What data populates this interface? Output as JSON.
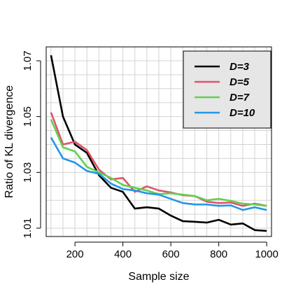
{
  "chart_data": {
    "type": "line",
    "title": "",
    "xlabel": "Sample size",
    "ylabel": "Ratio of KL divergence",
    "xlim": [
      80,
      1020
    ],
    "ylim": [
      1.007,
      1.075
    ],
    "x_ticks": [
      200,
      400,
      600,
      800,
      1000
    ],
    "y_ticks": [
      1.01,
      1.03,
      1.05,
      1.07
    ],
    "y_tick_labels": [
      "1.01",
      "1.03",
      "1.05",
      "1.07"
    ],
    "x_grid_step": 50,
    "y_grid_step": 0.005,
    "grid": true,
    "legend_position": "top-right",
    "x": [
      100,
      150,
      200,
      250,
      300,
      350,
      400,
      450,
      500,
      550,
      600,
      650,
      700,
      750,
      800,
      850,
      900,
      950,
      1000
    ],
    "series": [
      {
        "name": "D=3",
        "color": "#000000",
        "values": [
          1.072,
          1.05,
          1.04,
          1.037,
          1.029,
          1.0245,
          1.023,
          1.017,
          1.0175,
          1.017,
          1.0145,
          1.0125,
          1.0123,
          1.012,
          1.013,
          1.0113,
          1.0117,
          1.0093,
          1.009
        ]
      },
      {
        "name": "D=5",
        "color": "#DF536B",
        "values": [
          1.0515,
          1.04,
          1.041,
          1.038,
          1.031,
          1.0275,
          1.028,
          1.023,
          1.025,
          1.0235,
          1.0228,
          1.0218,
          1.0215,
          1.0195,
          1.019,
          1.0192,
          1.018,
          1.0188,
          1.018
        ]
      },
      {
        "name": "D=7",
        "color": "#61D04F",
        "values": [
          1.049,
          1.039,
          1.0375,
          1.032,
          1.03,
          1.028,
          1.0255,
          1.0245,
          1.0235,
          1.0222,
          1.0225,
          1.022,
          1.0215,
          1.02,
          1.0205,
          1.0198,
          1.0188,
          1.0185,
          1.018
        ]
      },
      {
        "name": "D=10",
        "color": "#2297E6",
        "values": [
          1.0425,
          1.035,
          1.0335,
          1.0305,
          1.0295,
          1.026,
          1.024,
          1.0235,
          1.0225,
          1.022,
          1.0205,
          1.019,
          1.0185,
          1.0185,
          1.018,
          1.0182,
          1.0165,
          1.0175,
          1.0165
        ]
      }
    ]
  }
}
